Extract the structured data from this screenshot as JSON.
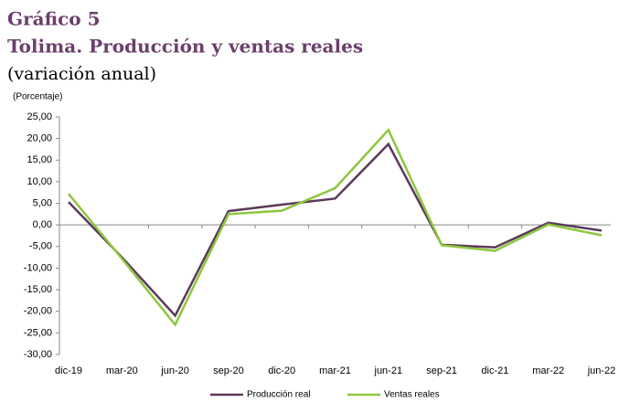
{
  "chart_data": {
    "type": "line",
    "title": "Gráfico 5",
    "subtitle": "Tolima. Producción y ventas reales",
    "note": "(variación anual)",
    "y_label": "(Porcentaje)",
    "categories": [
      "dic-19",
      "mar-20",
      "jun-20",
      "sep-20",
      "dic-20",
      "mar-21",
      "jun-21",
      "sep-21",
      "dic-21",
      "mar-22",
      "jun-22"
    ],
    "series": [
      {
        "name": "Producción real",
        "color": "#5b3a5a",
        "values": [
          5.3,
          -7.5,
          -21.0,
          3.2,
          4.7,
          6.1,
          18.7,
          -4.6,
          -5.2,
          0.5,
          -1.3
        ]
      },
      {
        "name": "Ventas reales",
        "color": "#8dc63f",
        "values": [
          7.2,
          -7.8,
          -23.1,
          2.5,
          3.3,
          8.5,
          22.0,
          -4.7,
          -6.0,
          0.1,
          -2.4
        ]
      }
    ],
    "ylim": [
      -30,
      25
    ],
    "yticks": [
      {
        "value": -30,
        "label": "-30,00"
      },
      {
        "value": -25,
        "label": "-25,00"
      },
      {
        "value": -20,
        "label": "-20,00"
      },
      {
        "value": -15,
        "label": "-15,00"
      },
      {
        "value": -10,
        "label": "-10,00"
      },
      {
        "value": -5,
        "label": "-5,00"
      },
      {
        "value": 0,
        "label": "0,00"
      },
      {
        "value": 5,
        "label": "5,00"
      },
      {
        "value": 10,
        "label": "10,00"
      },
      {
        "value": 15,
        "label": "15,00"
      },
      {
        "value": 20,
        "label": "20,00"
      },
      {
        "value": 25,
        "label": "25,00"
      }
    ],
    "legend": "bottom"
  }
}
